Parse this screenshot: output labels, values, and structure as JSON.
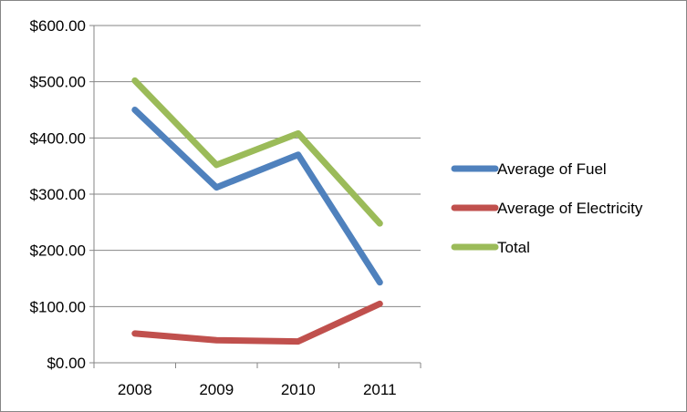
{
  "chart_data": {
    "type": "line",
    "title": "",
    "xlabel": "",
    "ylabel": "",
    "categories": [
      "2008",
      "2009",
      "2010",
      "2011"
    ],
    "ylim": [
      0,
      600
    ],
    "yticks": [
      0,
      100,
      200,
      300,
      400,
      500,
      600
    ],
    "ytick_labels": [
      "$0.00",
      "$100.00",
      "$200.00",
      "$300.00",
      "$400.00",
      "$500.00",
      "$600.00"
    ],
    "grid": true,
    "legend_position": "right",
    "series": [
      {
        "name": "Average of Fuel",
        "color": "#4f81bd",
        "values": [
          450,
          312,
          370,
          143
        ]
      },
      {
        "name": "Average of Electricity",
        "color": "#c0504d",
        "values": [
          52,
          40,
          38,
          105
        ]
      },
      {
        "name": "Total",
        "color": "#9bbb59",
        "values": [
          502,
          352,
          408,
          248
        ]
      }
    ]
  }
}
